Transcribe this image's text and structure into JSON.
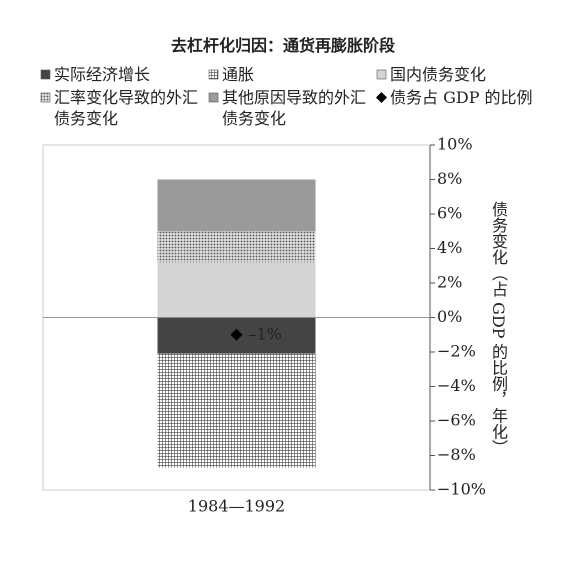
{
  "chart_data": {
    "type": "stacked_bar",
    "title": "去杠杆化归因：通货再膨胀阶段",
    "categories": [
      "1984—1992"
    ],
    "series": [
      {
        "name": "实际经济增长",
        "color": "#444444",
        "values": [
          -2.1
        ]
      },
      {
        "name": "通胀",
        "color": "#555555",
        "pattern": "grid",
        "values": [
          -6.6
        ]
      },
      {
        "name": "国内债务变化",
        "color": "#d4d4d4",
        "values": [
          3.2
        ]
      },
      {
        "name": "汇率变化导致的外汇债务变化",
        "color": "#777777",
        "pattern": "dots",
        "values": [
          1.8
        ]
      },
      {
        "name": "其他原因导致的外汇债务变化",
        "color": "#9a9a9a",
        "values": [
          3.0
        ]
      },
      {
        "name": "债务占 GDP 的比例",
        "color": "#000000",
        "kind": "point",
        "values": [
          -1
        ],
        "value_labels": [
          "–1%"
        ]
      }
    ],
    "y_label": "债务变化（占 GDP 的比例，年化）",
    "ylim": [
      -10,
      10
    ],
    "yticks": [
      {
        "value": -10,
        "label": "−10%"
      },
      {
        "value": -8,
        "label": "−8%"
      },
      {
        "value": -6,
        "label": "−6%"
      },
      {
        "value": -4,
        "label": "−4%"
      },
      {
        "value": -2,
        "label": "−2%"
      },
      {
        "value": 0,
        "label": "0%"
      },
      {
        "value": 2,
        "label": "2%"
      },
      {
        "value": 4,
        "label": "4%"
      },
      {
        "value": 6,
        "label": "6%"
      },
      {
        "value": 8,
        "label": "8%"
      },
      {
        "value": 10,
        "label": "10%"
      }
    ],
    "y_axis_side": "right"
  }
}
